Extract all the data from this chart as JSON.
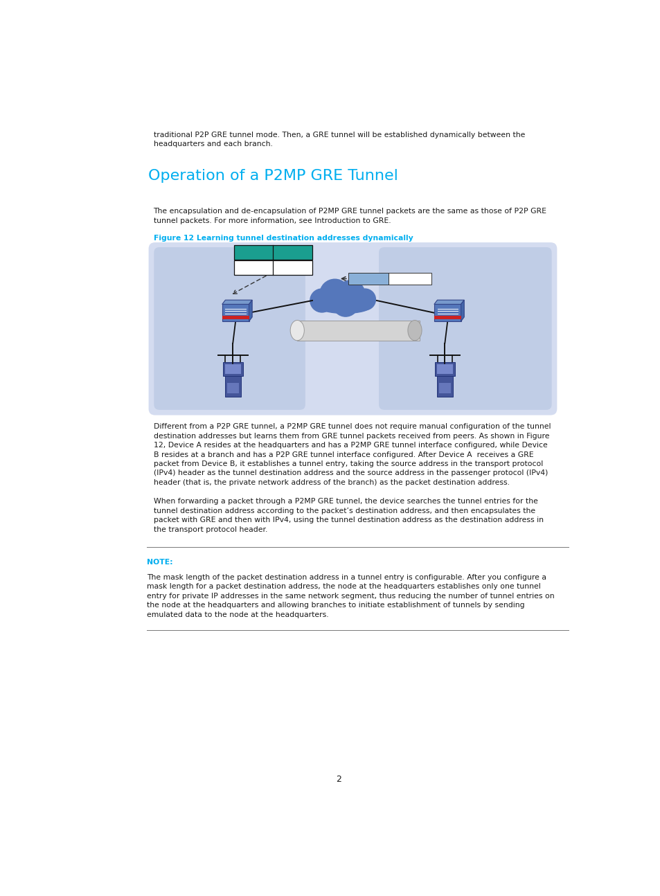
{
  "bg_color": "#ffffff",
  "page_width": 9.54,
  "page_height": 12.94,
  "intro_text1": "traditional P2P GRE tunnel mode. Then, a GRE tunnel will be established dynamically between the",
  "intro_text2": "headquarters and each branch.",
  "heading": "Operation of a P2MP GRE Tunnel",
  "heading_color": "#00AEEF",
  "para1_line1": "The encapsulation and de-encapsulation of P2MP GRE tunnel packets are the same as those of P2P GRE",
  "para1_line2": "tunnel packets. For more information, see Introduction to GRE.",
  "fig_caption": "Figure 12 Learning tunnel destination addresses dynamically",
  "fig_caption_color": "#00AEEF",
  "para2_lines": [
    "Different from a P2P GRE tunnel, a P2MP GRE tunnel does not require manual configuration of the tunnel",
    "destination addresses but learns them from GRE tunnel packets received from peers. As shown in Figure",
    "12, Device A resides at the headquarters and has a P2MP GRE tunnel interface configured, while Device",
    "B resides at a branch and has a P2P GRE tunnel interface configured. After Device A  receives a GRE",
    "packet from Device B, it establishes a tunnel entry, taking the source address in the transport protocol",
    "(IPv4) header as the tunnel destination address and the source address in the passenger protocol (IPv4)",
    "header (that is, the private network address of the branch) as the packet destination address."
  ],
  "para3_lines": [
    "When forwarding a packet through a P2MP GRE tunnel, the device searches the tunnel entries for the",
    "tunnel destination address according to the packet’s destination address, and then encapsulates the",
    "packet with GRE and then with IPv4, using the tunnel destination address as the destination address in",
    "the transport protocol header."
  ],
  "note_label": "NOTE:",
  "note_label_color": "#00AEEF",
  "note_lines": [
    "The mask length of the packet destination address in a tunnel entry is configurable. After you configure a",
    "mask length for a packet destination address, the node at the headquarters establishes only one tunnel",
    "entry for private IP addresses in the same network segment, thus reducing the number of tunnel entries on",
    "the node at the headquarters and allowing branches to initiate establishment of tunnels by sending",
    "emulated data to the node at the headquarters."
  ],
  "page_number": "2",
  "diag_outer_bg": "#D4DCF0",
  "diag_inner_bg": "#C0CDE6",
  "teal_color": "#1A9E8F",
  "cloud_color": "#5577BB",
  "packet_blue": "#8AB0D8",
  "router_blue": "#4466AA",
  "router_red": "#CC2222",
  "computer_blue": "#445599"
}
